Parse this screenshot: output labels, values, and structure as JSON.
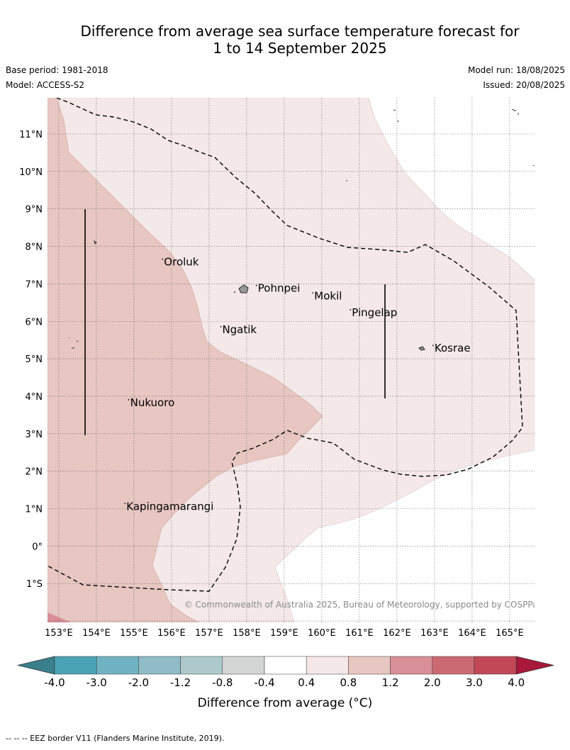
{
  "title_line1": "Difference from average sea surface temperature forecast for",
  "title_line2": "1 to 14 September 2025",
  "base_period": "Base period: 1981-2018",
  "model": "Model: ACCESS-S2",
  "model_run": "Model run: 18/08/2025",
  "issued": "Issued: 20/08/2025",
  "copyright": "© Commonwealth of Australia 2025, Bureau of Meteorology, supported by COSPPac",
  "footer": "--  --  -- EEZ border V11 (Flanders Marine Institute, 2019).",
  "map": {
    "lon_labels": [
      "153°E",
      "154°E",
      "155°E",
      "156°E",
      "157°E",
      "158°E",
      "159°E",
      "160°E",
      "161°E",
      "162°E",
      "163°E",
      "164°E",
      "165°E"
    ],
    "lat_labels": [
      "11°N",
      "10°N",
      "9°N",
      "8°N",
      "7°N",
      "6°N",
      "5°N",
      "4°N",
      "3°N",
      "2°N",
      "1°N",
      "0°",
      "1°S"
    ],
    "places": [
      {
        "name": "Oroluk",
        "lon": 155.8,
        "lat": 7.6
      },
      {
        "name": "Pohnpei",
        "lon": 158.3,
        "lat": 6.9
      },
      {
        "name": "Mokil",
        "lon": 159.8,
        "lat": 6.7
      },
      {
        "name": "Pingelap",
        "lon": 160.8,
        "lat": 6.25
      },
      {
        "name": "Ngatik",
        "lon": 157.35,
        "lat": 5.8
      },
      {
        "name": "Kosrae",
        "lon": 163.0,
        "lat": 5.3
      },
      {
        "name": "Nukuoro",
        "lon": 154.9,
        "lat": 3.85
      },
      {
        "name": "Kapingamarangi",
        "lon": 154.8,
        "lat": 1.08
      }
    ]
  },
  "colorbar": {
    "title": "Difference from average (°C)",
    "tick_labels": [
      "-4.0",
      "-3.0",
      "-2.0",
      "-1.2",
      "-0.8",
      "-0.4",
      "0.4",
      "0.8",
      "1.2",
      "2.0",
      "3.0",
      "4.0"
    ],
    "low_extend_color": "#3a7f8c",
    "high_extend_color": "#a8183a",
    "colors": [
      "#4aa3b4",
      "#6fb3c2",
      "#8fbcc6",
      "#adc9cc",
      "#d3d6d5",
      "#ffffff",
      "#f5e8e8",
      "#e8c6c2",
      "#d98f97",
      "#cc6a74",
      "#c24857"
    ]
  },
  "colors": {
    "anomaly_0_4_to_0_8": "#f5e8e8",
    "anomaly_0_8_to_1_2": "#e8c6c2",
    "anomaly_1_2_to_2_0": "#d98f97",
    "land": "#999999"
  }
}
